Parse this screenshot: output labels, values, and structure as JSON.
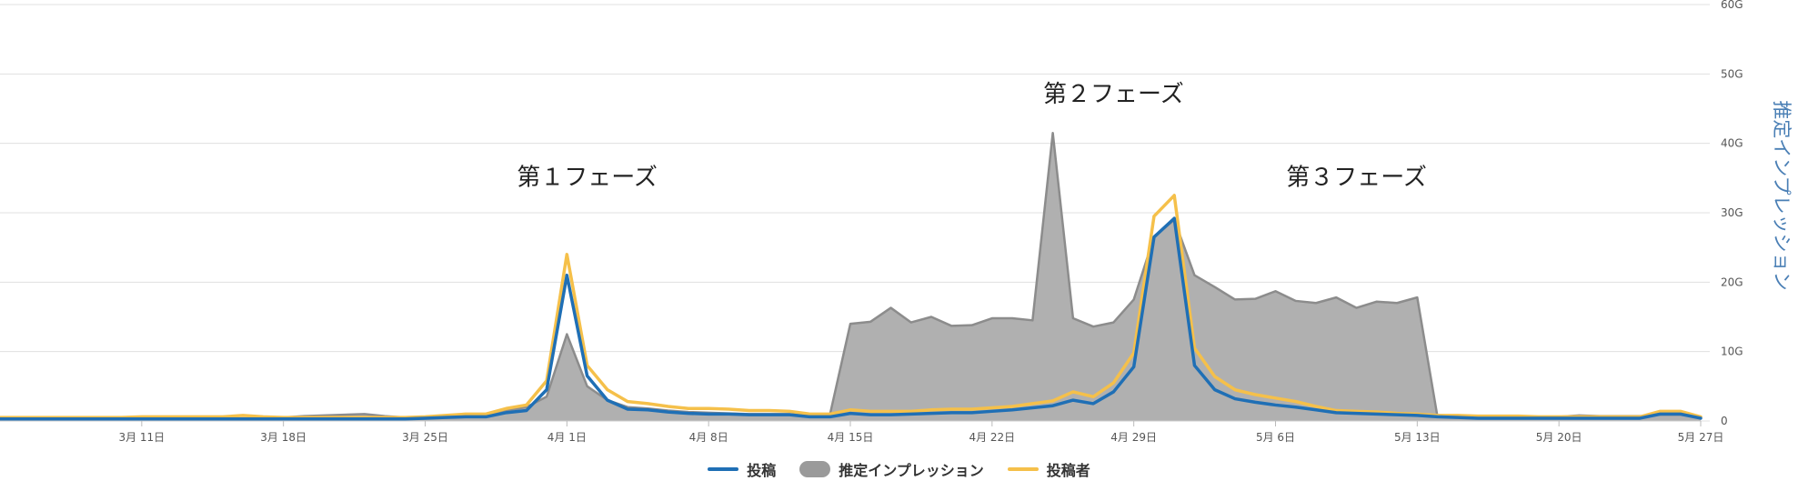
{
  "chart_data": {
    "type": "area",
    "title": "",
    "xlabel": "",
    "ylabel_right": "推定インプレッション",
    "y_right_ticks": [
      "0",
      "10G",
      "20G",
      "30G",
      "40G",
      "50G",
      "60G"
    ],
    "ylim_right": [
      0,
      60
    ],
    "x_ticks": [
      {
        "day": 7,
        "label": "3月 11日"
      },
      {
        "day": 14,
        "label": "3月 18日"
      },
      {
        "day": 21,
        "label": "3月 25日"
      },
      {
        "day": 28,
        "label": "4月 1日"
      },
      {
        "day": 35,
        "label": "4月 8日"
      },
      {
        "day": 42,
        "label": "4月 15日"
      },
      {
        "day": 49,
        "label": "4月 22日"
      },
      {
        "day": 56,
        "label": "4月 29日"
      },
      {
        "day": 63,
        "label": "5月 6日"
      },
      {
        "day": 70,
        "label": "5月 13日"
      },
      {
        "day": 77,
        "label": "5月 20日"
      },
      {
        "day": 84,
        "label": "5月 27日"
      }
    ],
    "x_days": [
      0,
      1,
      2,
      3,
      4,
      5,
      6,
      7,
      8,
      9,
      10,
      11,
      12,
      13,
      14,
      15,
      16,
      17,
      18,
      19,
      20,
      21,
      22,
      23,
      24,
      25,
      26,
      27,
      28,
      29,
      30,
      31,
      32,
      33,
      34,
      35,
      36,
      37,
      38,
      39,
      40,
      41,
      42,
      43,
      44,
      45,
      46,
      47,
      48,
      49,
      50,
      51,
      52,
      53,
      54,
      55,
      56,
      57,
      58,
      59,
      60,
      61,
      62,
      63,
      64,
      65,
      66,
      67,
      68,
      69,
      70,
      71,
      72,
      73,
      74,
      75,
      76,
      77,
      78,
      79,
      80,
      81,
      82,
      83,
      84
    ],
    "series": [
      {
        "name": "推定インプレッション",
        "kind": "area",
        "unit": "G",
        "values": [
          0.3,
          0.3,
          0.3,
          0.3,
          0.3,
          0.3,
          0.3,
          0.3,
          0.3,
          0.3,
          0.3,
          0.4,
          0.4,
          0.4,
          0.5,
          0.7,
          0.8,
          0.9,
          1.0,
          0.7,
          0.5,
          0.6,
          0.8,
          0.9,
          0.8,
          1.5,
          2.0,
          3.5,
          12.5,
          5.0,
          3.0,
          2.0,
          1.8,
          1.5,
          1.3,
          1.2,
          1.1,
          1.0,
          1.0,
          1.0,
          0.8,
          1.0,
          14.0,
          14.3,
          16.3,
          14.2,
          15.0,
          13.7,
          13.8,
          14.8,
          14.8,
          14.5,
          41.5,
          14.8,
          13.6,
          14.2,
          17.5,
          26.5,
          29.0,
          21.0,
          19.3,
          17.5,
          17.6,
          18.7,
          17.3,
          17.0,
          17.8,
          16.3,
          17.2,
          17.0,
          17.8,
          0.6,
          0.6,
          0.6,
          0.6,
          0.6,
          0.6,
          0.6,
          0.8,
          0.7,
          0.7,
          0.7,
          0.9,
          0.9,
          0.6
        ]
      },
      {
        "name": "投稿",
        "kind": "line",
        "color": "#1f6fb5",
        "values": [
          0.3,
          0.3,
          0.3,
          0.3,
          0.3,
          0.3,
          0.3,
          0.3,
          0.3,
          0.3,
          0.3,
          0.3,
          0.3,
          0.3,
          0.3,
          0.3,
          0.3,
          0.3,
          0.3,
          0.3,
          0.3,
          0.4,
          0.5,
          0.6,
          0.6,
          1.2,
          1.5,
          4.5,
          21.0,
          6.5,
          3.0,
          1.7,
          1.6,
          1.3,
          1.1,
          1.0,
          1.0,
          0.9,
          0.9,
          0.9,
          0.6,
          0.6,
          1.1,
          0.9,
          0.9,
          1.0,
          1.1,
          1.2,
          1.2,
          1.4,
          1.6,
          1.9,
          2.2,
          3.0,
          2.5,
          4.2,
          7.8,
          26.5,
          29.2,
          8.0,
          4.5,
          3.2,
          2.7,
          2.3,
          2.0,
          1.6,
          1.2,
          1.1,
          1.0,
          0.9,
          0.8,
          0.6,
          0.5,
          0.4,
          0.4,
          0.4,
          0.4,
          0.4,
          0.4,
          0.4,
          0.4,
          0.4,
          1.0,
          1.0,
          0.4
        ]
      },
      {
        "name": "投稿者",
        "kind": "line",
        "color": "#f5c04a",
        "values": [
          0.5,
          0.5,
          0.5,
          0.5,
          0.5,
          0.5,
          0.5,
          0.6,
          0.6,
          0.6,
          0.6,
          0.6,
          0.8,
          0.6,
          0.5,
          0.5,
          0.5,
          0.5,
          0.5,
          0.5,
          0.5,
          0.6,
          0.8,
          1.0,
          1.0,
          1.8,
          2.3,
          5.8,
          24.0,
          8.0,
          4.5,
          2.8,
          2.5,
          2.1,
          1.8,
          1.8,
          1.7,
          1.5,
          1.5,
          1.4,
          1.0,
          1.0,
          1.6,
          1.4,
          1.4,
          1.4,
          1.6,
          1.7,
          1.7,
          1.9,
          2.1,
          2.5,
          2.9,
          4.2,
          3.5,
          5.5,
          9.8,
          29.5,
          32.5,
          10.5,
          6.4,
          4.5,
          3.8,
          3.3,
          2.8,
          2.1,
          1.5,
          1.4,
          1.3,
          1.1,
          1.0,
          0.8,
          0.8,
          0.7,
          0.7,
          0.7,
          0.6,
          0.6,
          0.6,
          0.6,
          0.6,
          0.6,
          1.4,
          1.4,
          0.6
        ]
      }
    ],
    "annotations": [
      {
        "text": "第１フェーズ",
        "day": 29,
        "y": 34
      },
      {
        "text": "第２フェーズ",
        "day": 55,
        "y": 46
      },
      {
        "text": "第３フェーズ",
        "day": 67,
        "y": 34
      }
    ],
    "grid": true,
    "legend_position": "bottom-center",
    "colors": {
      "area_fill": "#b0b0b0",
      "area_line": "#8c8c8c",
      "grid": "#e0e0e0"
    }
  },
  "legend": {
    "items": [
      {
        "label": "投稿",
        "color": "#1f6fb5"
      },
      {
        "label": "推定インプレッション",
        "color": "#9a9a9a"
      },
      {
        "label": "投稿者",
        "color": "#f5c04a"
      }
    ]
  }
}
